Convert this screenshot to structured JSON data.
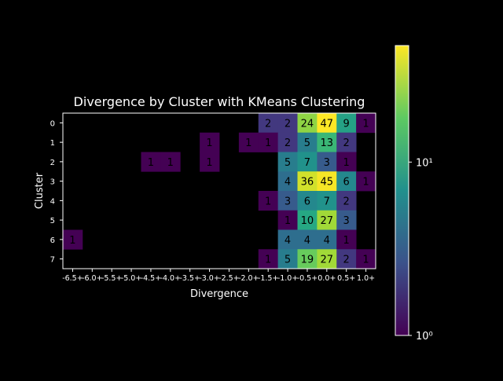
{
  "chart_data": {
    "type": "heatmap",
    "title": "Divergence by Cluster with KMeans Clustering",
    "xlabel": "Divergence",
    "ylabel": "Cluster",
    "x_categories": [
      "-6.5+",
      "-6.0+",
      "-5.5+",
      "-5.0+",
      "-4.5+",
      "-4.0+",
      "-3.5+",
      "-3.0+",
      "-2.5+",
      "-2.0+",
      "-1.5+",
      "-1.0+",
      "-0.5+",
      "0.0+",
      "0.5+",
      "1.0+"
    ],
    "y_categories": [
      "0",
      "1",
      "2",
      "3",
      "4",
      "5",
      "6",
      "7"
    ],
    "values": [
      [
        null,
        null,
        null,
        null,
        null,
        null,
        null,
        null,
        null,
        null,
        2,
        2,
        24,
        47,
        9,
        1
      ],
      [
        null,
        null,
        null,
        null,
        null,
        null,
        null,
        1,
        null,
        1,
        1,
        2,
        5,
        13,
        2,
        null
      ],
      [
        null,
        null,
        null,
        null,
        1,
        1,
        null,
        1,
        null,
        null,
        null,
        5,
        7,
        3,
        1,
        null
      ],
      [
        null,
        null,
        null,
        null,
        null,
        null,
        null,
        null,
        null,
        null,
        null,
        4,
        36,
        45,
        6,
        1
      ],
      [
        null,
        null,
        null,
        null,
        null,
        null,
        null,
        null,
        null,
        null,
        1,
        3,
        6,
        7,
        2,
        null
      ],
      [
        null,
        null,
        null,
        null,
        null,
        null,
        null,
        null,
        null,
        null,
        null,
        1,
        10,
        27,
        3,
        null
      ],
      [
        1,
        null,
        null,
        null,
        null,
        null,
        null,
        null,
        null,
        null,
        null,
        4,
        4,
        4,
        1,
        null
      ],
      [
        null,
        null,
        null,
        null,
        null,
        null,
        null,
        null,
        null,
        null,
        1,
        5,
        19,
        27,
        2,
        1
      ]
    ],
    "colormap": "viridis",
    "color_scale": "log",
    "color_range": [
      1,
      47
    ],
    "colorbar": {
      "ticks": [
        {
          "value": 1,
          "label": "10⁰"
        },
        {
          "value": 10,
          "label": "10¹"
        }
      ]
    },
    "empty_color": "#000000"
  }
}
